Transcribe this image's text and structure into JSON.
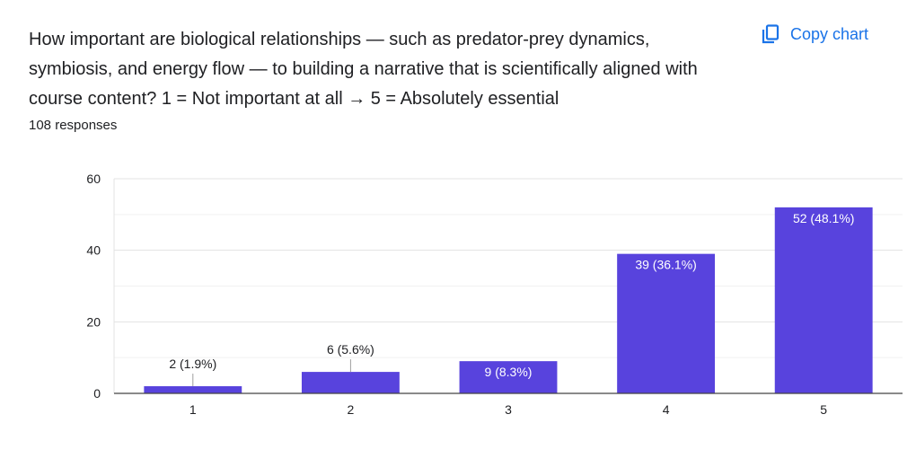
{
  "question": {
    "title": "How important are biological relationships — such as predator-prey dynamics, symbiosis, and energy flow — to building a narrative that is scientifically aligned with course content? 1 = Not important at all → 5 = Absolutely essential",
    "responses_text": "108 responses"
  },
  "actions": {
    "copy_label": "Copy chart",
    "copy_icon": "copy-icon"
  },
  "colors": {
    "bar": "#5843dd",
    "accent": "#1a73e8",
    "grid": "#e6e6e6",
    "axis": "#444444"
  },
  "chart_data": {
    "type": "bar",
    "categories": [
      "1",
      "2",
      "3",
      "4",
      "5"
    ],
    "values": [
      2,
      6,
      9,
      39,
      52
    ],
    "data_labels": [
      "2 (1.9%)",
      "6 (5.6%)",
      "9 (8.3%)",
      "39 (36.1%)",
      "52 (48.1%)"
    ],
    "ylim": [
      0,
      60
    ],
    "yticks": [
      0,
      20,
      40,
      60
    ],
    "grid": true,
    "title": "",
    "xlabel": "",
    "ylabel": ""
  }
}
